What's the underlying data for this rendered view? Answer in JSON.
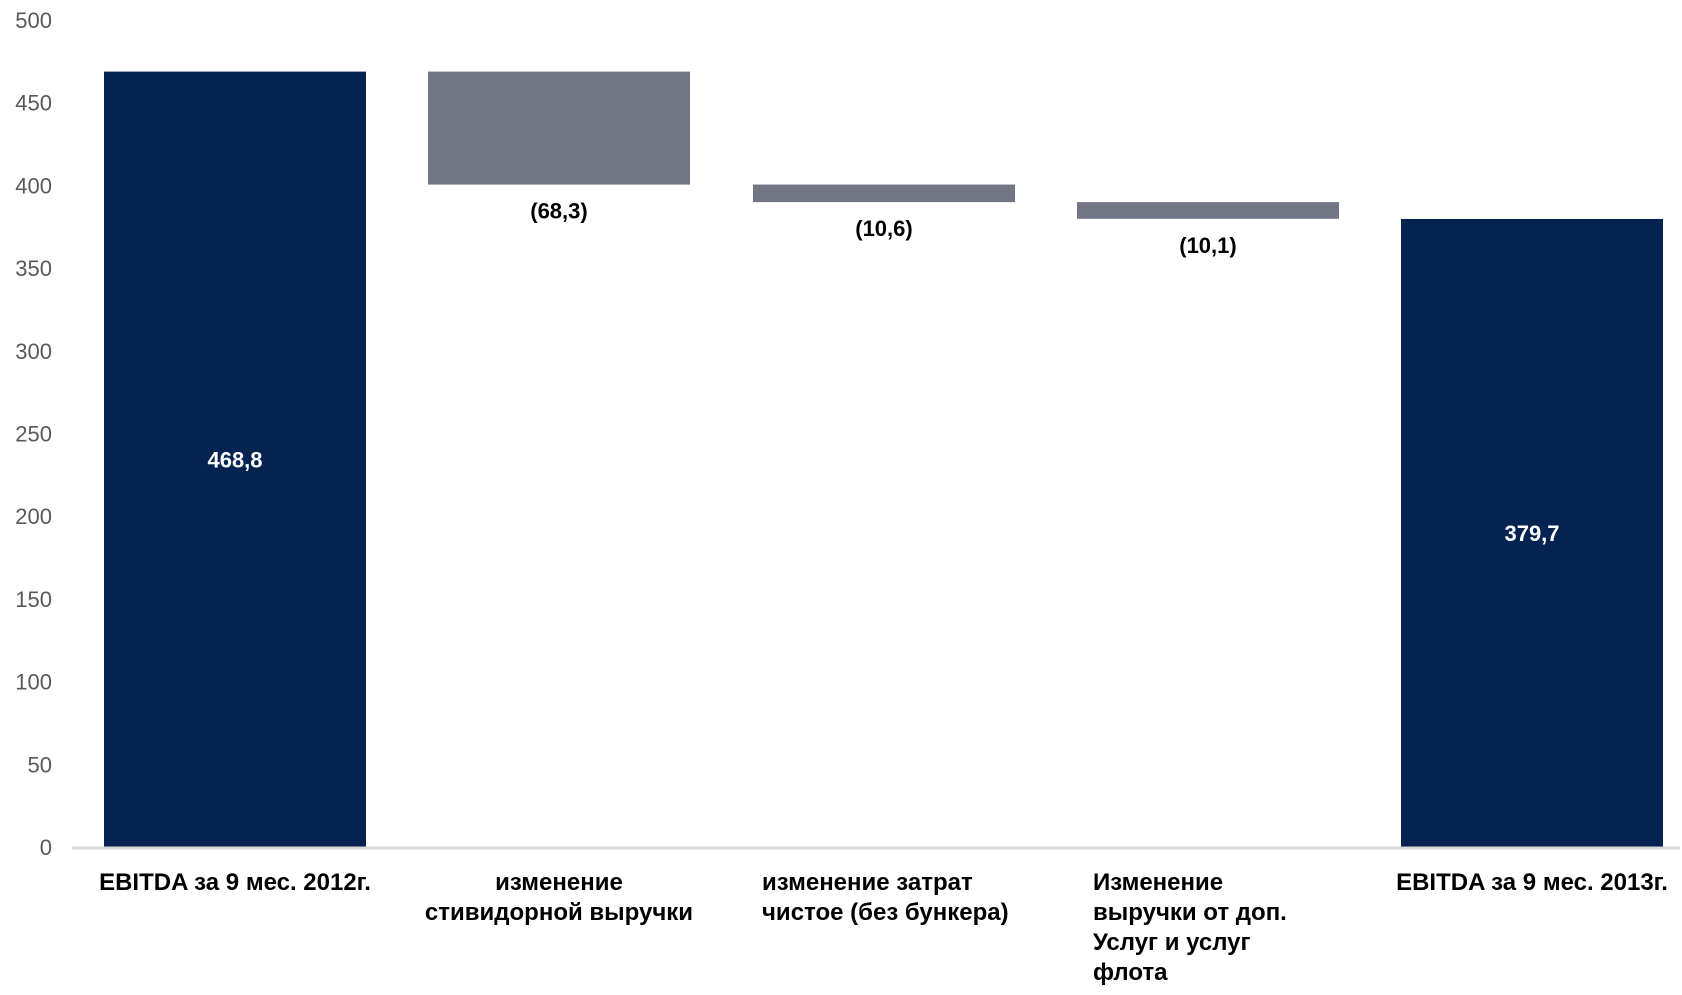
{
  "colors": {
    "total": "#052350",
    "change": "#717584",
    "axis": "#d9d9d9",
    "tick_text": "#595959",
    "label_on_dark": "#ffffff",
    "label_on_light": "#000000"
  },
  "chart_data": {
    "type": "bar",
    "subtype": "waterfall",
    "title": "",
    "xlabel": "",
    "ylabel": "",
    "ylim": [
      0,
      500
    ],
    "yticks": [
      "0",
      "50",
      "100",
      "150",
      "200",
      "250",
      "300",
      "350",
      "400",
      "450",
      "500"
    ],
    "grid": false,
    "legend": "none",
    "bars": [
      {
        "category_lines": [
          "EBITDA за 9 мес. 2012г."
        ],
        "kind": "total",
        "start": 0,
        "end": 468.8,
        "label": "468,8"
      },
      {
        "category_lines": [
          "изменение",
          "стивидорной выручки"
        ],
        "kind": "change",
        "start": 468.8,
        "end": 400.5,
        "label": "(68,3)"
      },
      {
        "category_lines": [
          "изменение затрат",
          "чистое (без бункера)"
        ],
        "kind": "change",
        "start": 400.5,
        "end": 389.9,
        "label": "(10,6)"
      },
      {
        "category_lines": [
          "Изменение",
          "выручки от доп.",
          "Услуг и услуг",
          "флота"
        ],
        "kind": "change",
        "start": 389.9,
        "end": 379.8,
        "label": "(10,1)"
      },
      {
        "category_lines": [
          "EBITDA за 9 мес. 2013г."
        ],
        "kind": "total",
        "start": 0,
        "end": 379.7,
        "label": "379,7"
      }
    ]
  }
}
